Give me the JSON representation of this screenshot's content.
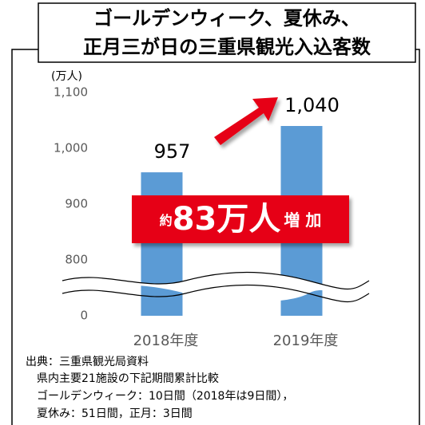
{
  "chart_data": {
    "type": "bar",
    "title": [
      "ゴールデンウィーク、夏休み、",
      "正月三が日の三重県観光入込客数"
    ],
    "y_unit": "(万人)",
    "categories": [
      "2018年度",
      "2019年度"
    ],
    "values": [
      957,
      1040
    ],
    "value_labels": [
      "957",
      "1,040"
    ],
    "color": "#5b9bd5",
    "ylim": [
      0,
      1100
    ],
    "axis_break": 700,
    "yticks": [
      0,
      800,
      900,
      {
        "value": 1000,
        "label": "1,000"
      },
      {
        "value": 1100,
        "label": "1,100"
      }
    ],
    "annotation": {
      "prefix": "約",
      "main": "83万人",
      "suffix": "増 加"
    },
    "source": [
      "出典：三重県観光局資料",
      "県内主要21施設の下記期間累計比較",
      "ゴールデンウィーク：10日間（2018年は9日間），",
      "夏休み：51日間，正月：3日間"
    ]
  }
}
